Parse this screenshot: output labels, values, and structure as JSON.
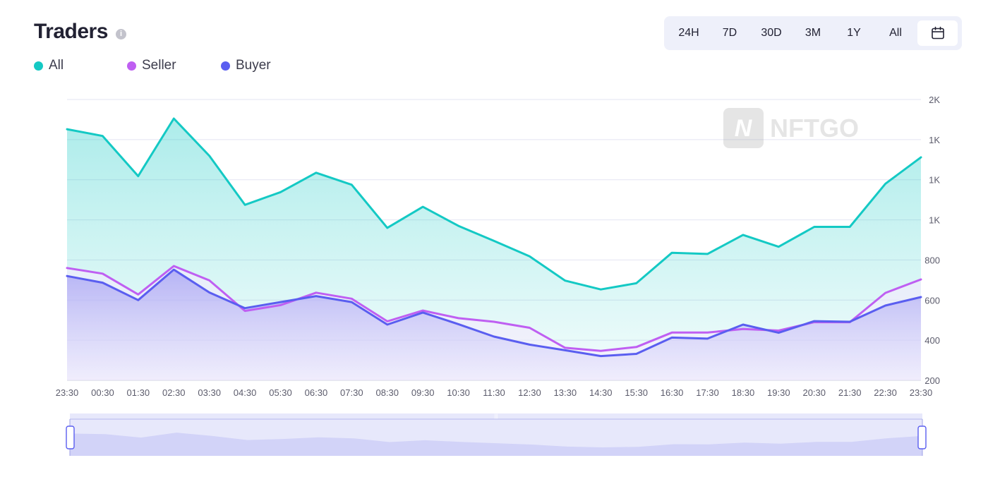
{
  "header": {
    "title": "Traders",
    "info_icon": "info-icon"
  },
  "legend": [
    {
      "label": "All",
      "color": "#14c9c4"
    },
    {
      "label": "Seller",
      "color": "#bf5ff2"
    },
    {
      "label": "Buyer",
      "color": "#5a5ef0"
    }
  ],
  "range_buttons": [
    "24H",
    "7D",
    "30D",
    "3M",
    "1Y",
    "All"
  ],
  "calendar_icon": "calendar-icon",
  "watermark": "NFTGO",
  "chart_data": {
    "type": "area",
    "categories": [
      "23:30",
      "00:30",
      "01:30",
      "02:30",
      "03:30",
      "04:30",
      "05:30",
      "06:30",
      "07:30",
      "08:30",
      "09:30",
      "10:30",
      "11:30",
      "12:30",
      "13:30",
      "14:30",
      "15:30",
      "16:30",
      "17:30",
      "18:30",
      "19:30",
      "20:30",
      "21:30",
      "22:30",
      "23:30"
    ],
    "y_tick_labels": [
      "200",
      "400",
      "600",
      "800",
      "1K",
      "1K",
      "1K",
      "2K"
    ],
    "ylim": [
      200,
      1600
    ],
    "grid": true,
    "legend_position": "top-left",
    "series": [
      {
        "name": "All",
        "color": "#14c9c4",
        "values": [
          1452,
          1418,
          1218,
          1505,
          1319,
          1075,
          1138,
          1235,
          1175,
          960,
          1065,
          970,
          895,
          818,
          697,
          653,
          684,
          836,
          830,
          925,
          866,
          965,
          965,
          1180,
          1312
        ]
      },
      {
        "name": "Seller",
        "color": "#bf5ff2",
        "values": [
          760,
          732,
          628,
          770,
          698,
          546,
          575,
          637,
          607,
          494,
          548,
          510,
          492,
          462,
          362,
          347,
          366,
          438,
          438,
          456,
          448,
          490,
          490,
          636,
          703
        ]
      },
      {
        "name": "Buyer",
        "color": "#5a5ef0",
        "values": [
          720,
          687,
          600,
          752,
          638,
          560,
          590,
          620,
          590,
          478,
          538,
          480,
          418,
          378,
          350,
          321,
          332,
          413,
          408,
          478,
          437,
          495,
          492,
          573,
          615
        ]
      }
    ]
  }
}
